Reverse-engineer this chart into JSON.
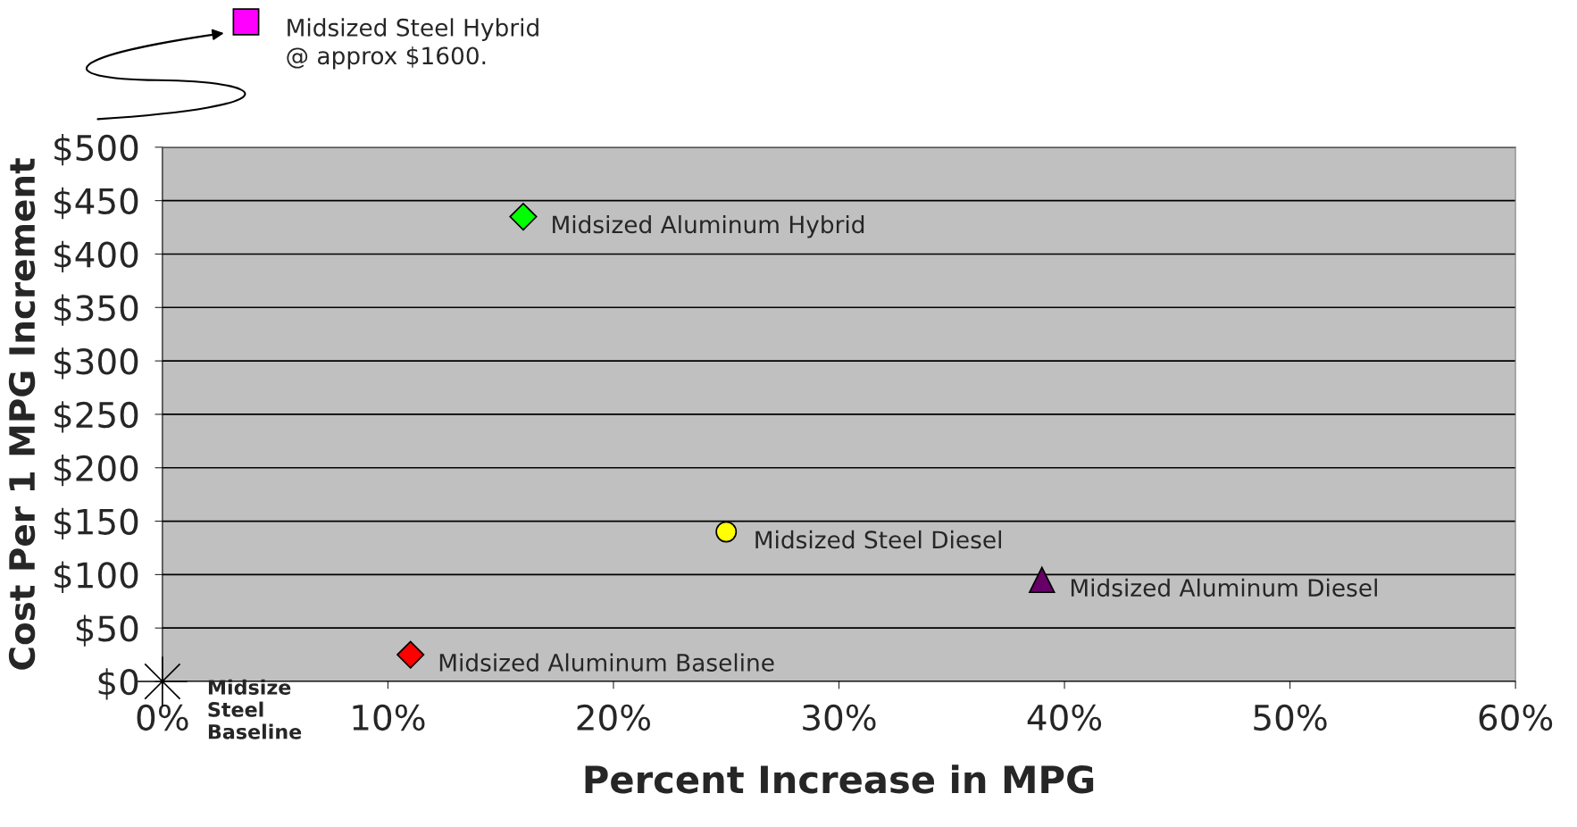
{
  "chart_data": {
    "type": "scatter",
    "xlabel": "Percent Increase in MPG",
    "ylabel": "Cost Per 1 MPG Increment",
    "xlim": [
      0,
      60
    ],
    "xticks": [
      {
        "value": 0,
        "label": "0%"
      },
      {
        "value": 10,
        "label": "10%"
      },
      {
        "value": 20,
        "label": "20%"
      },
      {
        "value": 30,
        "label": "30%"
      },
      {
        "value": 40,
        "label": "40%"
      },
      {
        "value": 50,
        "label": "50%"
      },
      {
        "value": 60,
        "label": "60%"
      }
    ],
    "ylim": [
      0,
      500
    ],
    "yticks": [
      {
        "value": 0,
        "label": "$0"
      },
      {
        "value": 50,
        "label": "$50"
      },
      {
        "value": 100,
        "label": "$100"
      },
      {
        "value": 150,
        "label": "$150"
      },
      {
        "value": 200,
        "label": "$200"
      },
      {
        "value": 250,
        "label": "$250"
      },
      {
        "value": 300,
        "label": "$300"
      },
      {
        "value": 350,
        "label": "$350"
      },
      {
        "value": 400,
        "label": "$400"
      },
      {
        "value": 450,
        "label": "$450"
      },
      {
        "value": 500,
        "label": "$500"
      }
    ],
    "grid": "y",
    "series": [
      {
        "name": "Midsize\nSteel\nBaseline",
        "color": "#000000",
        "marker": "star",
        "x": [
          0
        ],
        "values": [
          0
        ]
      },
      {
        "name": "Midsized Aluminum Baseline",
        "color": "#ff0000",
        "marker": "diamond",
        "x": [
          11
        ],
        "values": [
          25
        ]
      },
      {
        "name": "Midsized Aluminum Hybrid",
        "color": "#00ff00",
        "marker": "diamond",
        "x": [
          16
        ],
        "values": [
          435
        ]
      },
      {
        "name": "Midsized Steel Diesel",
        "color": "#ffff00",
        "marker": "circle",
        "x": [
          25
        ],
        "values": [
          140
        ]
      },
      {
        "name": "Midsized Aluminum Diesel",
        "color": "#660066",
        "marker": "triangle",
        "x": [
          39
        ],
        "values": [
          95
        ]
      }
    ],
    "annotations": [
      "Midsized Steel Hybrid\n@ approx $1600."
    ]
  }
}
